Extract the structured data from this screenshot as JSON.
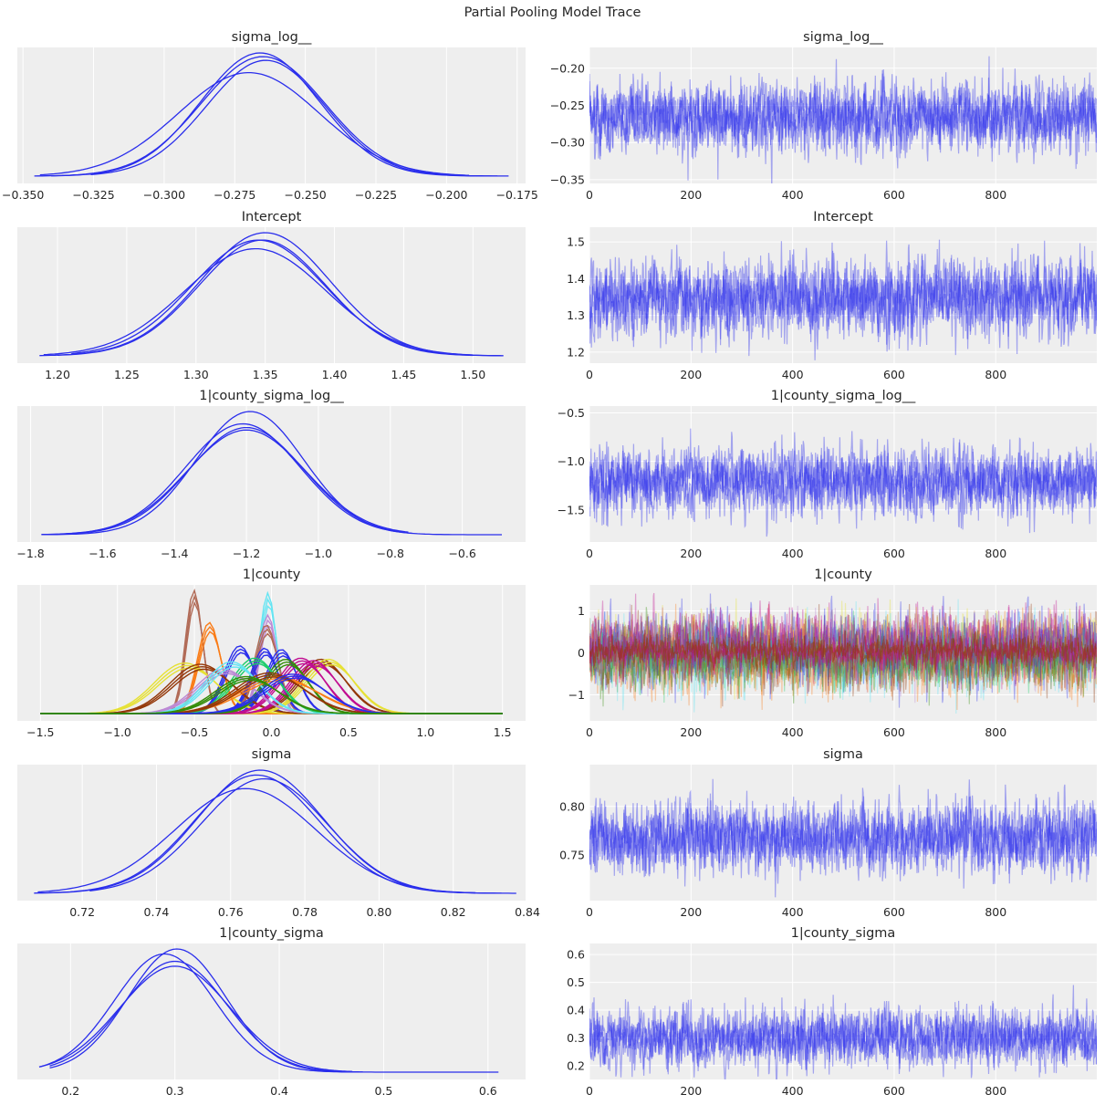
{
  "figure_title": "Partial Pooling Model Trace",
  "palette": {
    "background": "#ffffff",
    "axes_face": "#eeeeee",
    "grid": "#ffffff",
    "chain": "#2a2eec",
    "county_colors": [
      "#2a2eec",
      "#fa7c17",
      "#328c06",
      "#c10c90",
      "#933708",
      "#65e5f3",
      "#e6e135",
      "#1ccd6a",
      "#bd8ad5",
      "#b16b57"
    ]
  },
  "chart_data": [
    {
      "variable": "sigma_log__",
      "type": "line",
      "kde": {
        "title": "sigma_log__",
        "xlim": [
          -0.352,
          -0.172
        ],
        "xticks": [
          -0.35,
          -0.325,
          -0.3,
          -0.275,
          -0.25,
          -0.225,
          -0.2,
          -0.175
        ],
        "xtick_labels": [
          "−0.350",
          "−0.325",
          "−0.300",
          "−0.275",
          "−0.250",
          "−0.225",
          "−0.200",
          "−0.175"
        ],
        "chains": [
          {
            "mean": -0.265,
            "sd": 0.022,
            "range": [
              -0.346,
              -0.178
            ],
            "peak": 0.97
          },
          {
            "mean": -0.266,
            "sd": 0.021,
            "range": [
              -0.34,
              -0.19
            ],
            "peak": 1.0
          },
          {
            "mean": -0.264,
            "sd": 0.021,
            "range": [
              -0.326,
              -0.182
            ],
            "peak": 0.94
          },
          {
            "mean": -0.27,
            "sd": 0.025,
            "range": [
              -0.344,
              -0.192
            ],
            "peak": 0.84
          }
        ]
      },
      "trace": {
        "title": "sigma_log__",
        "xlim": [
          0,
          999
        ],
        "ylim": [
          -0.355,
          -0.172
        ],
        "xticks": [
          0,
          200,
          400,
          600,
          800
        ],
        "xtick_labels": [
          "0",
          "200",
          "400",
          "600",
          "800"
        ],
        "yticks": [
          -0.35,
          -0.3,
          -0.25,
          -0.2
        ],
        "ytick_labels": [
          "−0.35",
          "−0.30",
          "−0.25",
          "−0.20"
        ],
        "mean": -0.265,
        "sd": 0.022,
        "n_chains": 4,
        "draws": 1000
      }
    },
    {
      "variable": "Intercept",
      "type": "line",
      "kde": {
        "title": "Intercept",
        "xlim": [
          1.171,
          1.538
        ],
        "xticks": [
          1.2,
          1.25,
          1.3,
          1.35,
          1.4,
          1.45,
          1.5
        ],
        "xtick_labels": [
          "1.20",
          "1.25",
          "1.30",
          "1.35",
          "1.40",
          "1.45",
          "1.50"
        ],
        "chains": [
          {
            "mean": 1.35,
            "sd": 0.047,
            "range": [
              1.187,
              1.522
            ],
            "peak": 1.0
          },
          {
            "mean": 1.348,
            "sd": 0.046,
            "range": [
              1.2,
              1.5
            ],
            "peak": 0.94
          },
          {
            "mean": 1.345,
            "sd": 0.048,
            "range": [
              1.21,
              1.52
            ],
            "peak": 0.94
          },
          {
            "mean": 1.343,
            "sd": 0.051,
            "range": [
              1.19,
              1.5
            ],
            "peak": 0.87
          }
        ]
      },
      "trace": {
        "title": "Intercept",
        "xlim": [
          0,
          999
        ],
        "ylim": [
          1.17,
          1.54
        ],
        "xticks": [
          0,
          200,
          400,
          600,
          800
        ],
        "xtick_labels": [
          "0",
          "200",
          "400",
          "600",
          "800"
        ],
        "yticks": [
          1.2,
          1.3,
          1.4,
          1.5
        ],
        "ytick_labels": [
          "1.2",
          "1.3",
          "1.4",
          "1.5"
        ],
        "mean": 1.347,
        "sd": 0.048,
        "n_chains": 4,
        "draws": 1000
      }
    },
    {
      "variable": "1|county_sigma_log__",
      "type": "line",
      "kde": {
        "title": "1|county_sigma_log__",
        "xlim": [
          -1.837,
          -0.424
        ],
        "xticks": [
          -1.8,
          -1.6,
          -1.4,
          -1.2,
          -1.0,
          -0.8,
          -0.6
        ],
        "xtick_labels": [
          "−1.8",
          "−1.6",
          "−1.4",
          "−1.2",
          "−1.0",
          "−0.8",
          "−0.6"
        ],
        "chains": [
          {
            "mean": -1.19,
            "sd": 0.15,
            "range": [
              -1.77,
              -0.49
            ],
            "peak": 1.0
          },
          {
            "mean": -1.21,
            "sd": 0.16,
            "range": [
              -1.71,
              -0.74
            ],
            "peak": 0.9
          },
          {
            "mean": -1.2,
            "sd": 0.16,
            "range": [
              -1.7,
              -0.76
            ],
            "peak": 0.87
          },
          {
            "mean": -1.2,
            "sd": 0.165,
            "range": [
              -1.77,
              -0.75
            ],
            "peak": 0.85
          }
        ]
      },
      "trace": {
        "title": "1|county_sigma_log__",
        "xlim": [
          0,
          999
        ],
        "ylim": [
          -1.83,
          -0.43
        ],
        "xticks": [
          0,
          200,
          400,
          600,
          800
        ],
        "xtick_labels": [
          "0",
          "200",
          "400",
          "600",
          "800"
        ],
        "yticks": [
          -1.5,
          -1.0,
          -0.5
        ],
        "ytick_labels": [
          "−1.5",
          "−1.0",
          "−0.5"
        ],
        "mean": -1.2,
        "sd": 0.16,
        "n_chains": 4,
        "draws": 1000
      }
    },
    {
      "variable": "1|county",
      "type": "line",
      "kde": {
        "title": "1|county",
        "xlim": [
          -1.65,
          1.65
        ],
        "xticks": [
          -1.5,
          -1.0,
          -0.5,
          0.0,
          0.5,
          1.0,
          1.5
        ],
        "xtick_labels": [
          "−1.5",
          "−1.0",
          "−0.5",
          "0.0",
          "0.5",
          "1.0",
          "1.5"
        ],
        "range": [
          -1.5,
          1.5
        ],
        "groups": [
          {
            "mean": -0.5,
            "sd": 0.055,
            "peak": 1.0,
            "color_index": 9
          },
          {
            "mean": -0.4,
            "sd": 0.075,
            "peak": 0.74,
            "color_index": 1
          },
          {
            "mean": -0.02,
            "sd": 0.055,
            "peak": 0.98,
            "color_index": 5
          },
          {
            "mean": -0.02,
            "sd": 0.06,
            "peak": 0.8,
            "color_index": 8
          },
          {
            "mean": -0.03,
            "sd": 0.075,
            "peak": 0.72,
            "color_index": 9
          },
          {
            "mean": -0.2,
            "sd": 0.1,
            "peak": 0.55,
            "color_index": 0
          },
          {
            "mean": -0.04,
            "sd": 0.09,
            "peak": 0.53,
            "color_index": 0
          },
          {
            "mean": 0.07,
            "sd": 0.1,
            "peak": 0.52,
            "color_index": 0
          },
          {
            "mean": -0.55,
            "sd": 0.2,
            "peak": 0.41,
            "color_index": 6
          },
          {
            "mean": -0.45,
            "sd": 0.2,
            "peak": 0.4,
            "color_index": 4
          },
          {
            "mean": 0.33,
            "sd": 0.16,
            "peak": 0.44,
            "color_index": 4
          },
          {
            "mean": 0.38,
            "sd": 0.16,
            "peak": 0.44,
            "color_index": 6
          },
          {
            "mean": 0.2,
            "sd": 0.15,
            "peak": 0.45,
            "color_index": 3
          },
          {
            "mean": 0.28,
            "sd": 0.15,
            "peak": 0.43,
            "color_index": 3
          },
          {
            "mean": 0.1,
            "sd": 0.14,
            "peak": 0.44,
            "color_index": 2
          },
          {
            "mean": -0.1,
            "sd": 0.15,
            "peak": 0.45,
            "color_index": 7
          },
          {
            "mean": -0.3,
            "sd": 0.18,
            "peak": 0.36,
            "color_index": 8
          },
          {
            "mean": -0.25,
            "sd": 0.17,
            "peak": 0.42,
            "color_index": 5
          },
          {
            "mean": 0.05,
            "sd": 0.25,
            "peak": 0.3,
            "color_index": 1
          },
          {
            "mean": 0.0,
            "sd": 0.22,
            "peak": 0.33,
            "color_index": 4
          },
          {
            "mean": 0.15,
            "sd": 0.2,
            "peak": 0.32,
            "color_index": 0
          },
          {
            "mean": -0.15,
            "sd": 0.2,
            "peak": 0.3,
            "color_index": 2
          }
        ]
      },
      "trace": {
        "title": "1|county",
        "xlim": [
          0,
          999
        ],
        "ylim": [
          -1.62,
          1.62
        ],
        "xticks": [
          0,
          200,
          400,
          600,
          800
        ],
        "xtick_labels": [
          "0",
          "200",
          "400",
          "600",
          "800"
        ],
        "yticks": [
          -1,
          0,
          1
        ],
        "ytick_labels": [
          "−1",
          "0",
          "1"
        ],
        "mean": 0.0,
        "sd": 0.38,
        "n_series": 20,
        "draws": 1000
      }
    },
    {
      "variable": "sigma",
      "type": "line",
      "kde": {
        "title": "sigma",
        "xlim": [
          0.7025,
          0.8395
        ],
        "xticks": [
          0.72,
          0.74,
          0.76,
          0.78,
          0.8,
          0.82,
          0.84
        ],
        "xtick_labels": [
          "0.72",
          "0.74",
          "0.76",
          "0.78",
          "0.80",
          "0.82",
          "0.84"
        ],
        "chains": [
          {
            "mean": 0.768,
            "sd": 0.017,
            "range": [
              0.707,
              0.837
            ],
            "peak": 1.0
          },
          {
            "mean": 0.767,
            "sd": 0.017,
            "range": [
              0.711,
              0.826
            ],
            "peak": 0.96
          },
          {
            "mean": 0.769,
            "sd": 0.017,
            "range": [
              0.722,
              0.833
            ],
            "peak": 0.93
          },
          {
            "mean": 0.764,
            "sd": 0.019,
            "range": [
              0.708,
              0.826
            ],
            "peak": 0.85
          }
        ]
      },
      "trace": {
        "title": "sigma",
        "xlim": [
          0,
          999
        ],
        "ylim": [
          0.703,
          0.843
        ],
        "xticks": [
          0,
          200,
          400,
          600,
          800
        ],
        "xtick_labels": [
          "0",
          "200",
          "400",
          "600",
          "800"
        ],
        "yticks": [
          0.75,
          0.8
        ],
        "ytick_labels": [
          "0.75",
          "0.80"
        ],
        "mean": 0.767,
        "sd": 0.017,
        "n_chains": 4,
        "draws": 1000
      }
    },
    {
      "variable": "1|county_sigma",
      "type": "line",
      "kde": {
        "title": "1|county_sigma",
        "xlim": [
          0.149,
          0.636
        ],
        "xticks": [
          0.2,
          0.3,
          0.4,
          0.5,
          0.6
        ],
        "xtick_labels": [
          "0.2",
          "0.3",
          "0.4",
          "0.5",
          "0.6"
        ],
        "chains": [
          {
            "mean": 0.302,
            "sd": 0.047,
            "range": [
              0.18,
              0.61
            ],
            "peak": 1.0
          },
          {
            "mean": 0.29,
            "sd": 0.048,
            "range": [
              0.17,
              0.47
            ],
            "peak": 0.96
          },
          {
            "mean": 0.3,
            "sd": 0.05,
            "range": [
              0.18,
              0.48
            ],
            "peak": 0.9
          },
          {
            "mean": 0.3,
            "sd": 0.053,
            "range": [
              0.17,
              0.47
            ],
            "peak": 0.86
          }
        ]
      },
      "trace": {
        "title": "1|county_sigma",
        "xlim": [
          0,
          999
        ],
        "ylim": [
          0.15,
          0.64
        ],
        "xticks": [
          0,
          200,
          400,
          600,
          800
        ],
        "xtick_labels": [
          "0",
          "200",
          "400",
          "600",
          "800"
        ],
        "yticks": [
          0.2,
          0.3,
          0.4,
          0.5,
          0.6
        ],
        "ytick_labels": [
          "0.2",
          "0.3",
          "0.4",
          "0.5",
          "0.6"
        ],
        "mean": 0.3,
        "sd": 0.048,
        "n_chains": 4,
        "draws": 1000
      }
    }
  ]
}
